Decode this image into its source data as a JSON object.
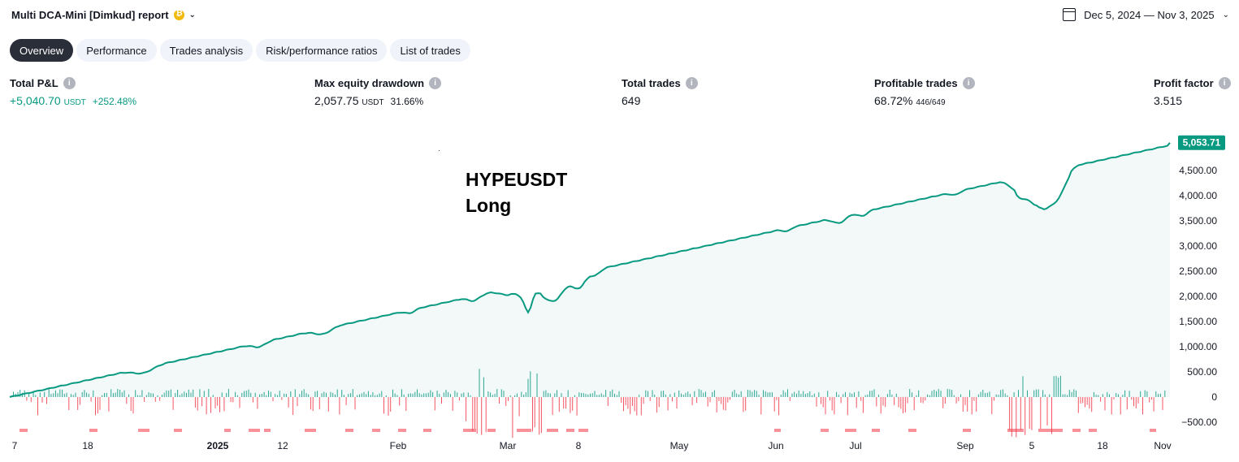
{
  "header": {
    "title": "Multi DCA-Mini [Dimkud] report",
    "date_range": "Dec 5, 2024 — Nov 3, 2025"
  },
  "tabs": [
    {
      "label": "Overview",
      "active": true
    },
    {
      "label": "Performance",
      "active": false
    },
    {
      "label": "Trades analysis",
      "active": false
    },
    {
      "label": "Risk/performance ratios",
      "active": false
    },
    {
      "label": "List of trades",
      "active": false
    }
  ],
  "stats": {
    "total_pnl": {
      "label": "Total P&L",
      "value": "+5,040.70",
      "unit": "USDT",
      "pct": "+252.48%"
    },
    "max_drawdown": {
      "label": "Max equity drawdown",
      "value": "2,057.75",
      "unit": "USDT",
      "pct": "31.66%"
    },
    "total_trades": {
      "label": "Total trades",
      "value": "649"
    },
    "profitable_trades": {
      "label": "Profitable trades",
      "value": "68.72%",
      "sub": "446/649"
    },
    "profit_factor": {
      "label": "Profit factor",
      "value": "3.515"
    }
  },
  "overlay": {
    "line1": "HYPEUSDT",
    "line2": "Long"
  },
  "colors": {
    "equity_line": "#089981",
    "equity_fill": "#f2f9f8",
    "bar_positive": "#089981",
    "bar_negative": "#f23645",
    "tab_active_bg": "#2a2e39",
    "tab_bg": "#f0f3fa"
  },
  "chart_data": {
    "type": "area",
    "series": [
      {
        "name": "Equity",
        "x": [
          "Dec 7",
          "Dec 18",
          "Jan 2025",
          "Jan 12",
          "Feb",
          "Feb 24",
          "Mar",
          "Mar 8",
          "May",
          "Jun",
          "Jul",
          "Sep",
          "Sep 5",
          "Sep 18",
          "Nov"
        ],
        "values": [
          0,
          300,
          600,
          800,
          1150,
          1700,
          1950,
          2300,
          2800,
          3250,
          3600,
          4100,
          4100,
          4600,
          5053.71
        ]
      }
    ],
    "y_ticks": [
      "4,500.00",
      "4,000.00",
      "3,500.00",
      "3,000.00",
      "2,500.00",
      "2,000.00",
      "1,500.00",
      "1,000.00",
      "500.00",
      "0",
      "−500.00"
    ],
    "x_ticks": [
      "7",
      "18",
      "2025",
      "12",
      "Feb",
      "Mar",
      "8",
      "May",
      "Jun",
      "Jul",
      "Sep",
      "5",
      "18",
      "Nov"
    ],
    "last_value_label": "5,053.71",
    "ylim": [
      -600,
      5100
    ],
    "grid": false
  }
}
